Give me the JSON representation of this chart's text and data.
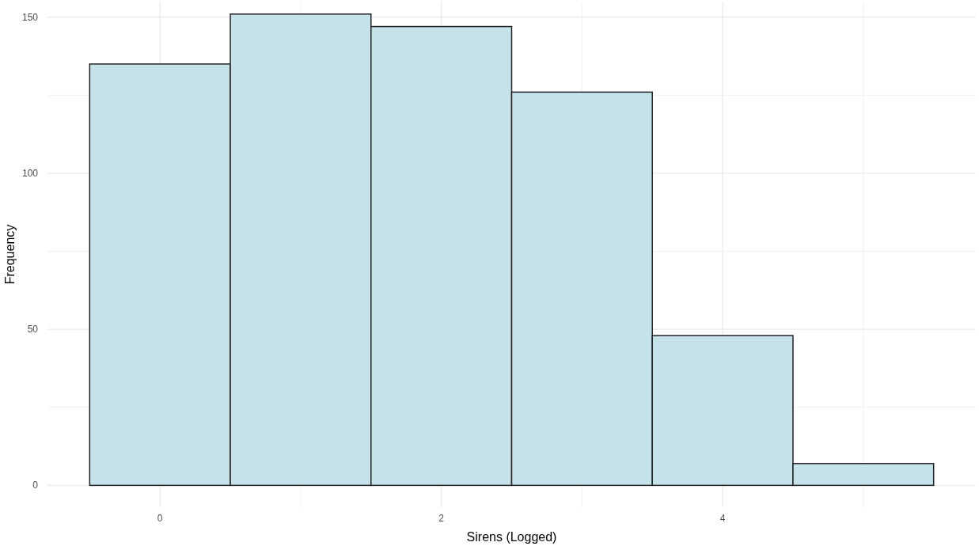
{
  "chart_data": {
    "type": "histogram",
    "xlabel": "Sirens (Logged)",
    "ylabel": "Frequency",
    "bins": [
      -0.5,
      0.5,
      1.5,
      2.5,
      3.5,
      4.5,
      5.5
    ],
    "values": [
      135,
      151,
      147,
      126,
      48,
      7
    ],
    "color": "#c5e1ea",
    "xlim": [
      -0.8,
      5.8
    ],
    "ylim": [
      -7,
      155
    ],
    "xticks": [
      0,
      {
        "value": 1,
        "label": null
      },
      2,
      {
        "value": 3,
        "label": null
      },
      4,
      {
        "value": 5,
        "label": null
      }
    ],
    "yticks": [
      0,
      {
        "value": 25,
        "label": null
      },
      50,
      {
        "value": 75,
        "label": null
      },
      100,
      {
        "value": 125,
        "label": null
      },
      150
    ],
    "grid": true
  }
}
